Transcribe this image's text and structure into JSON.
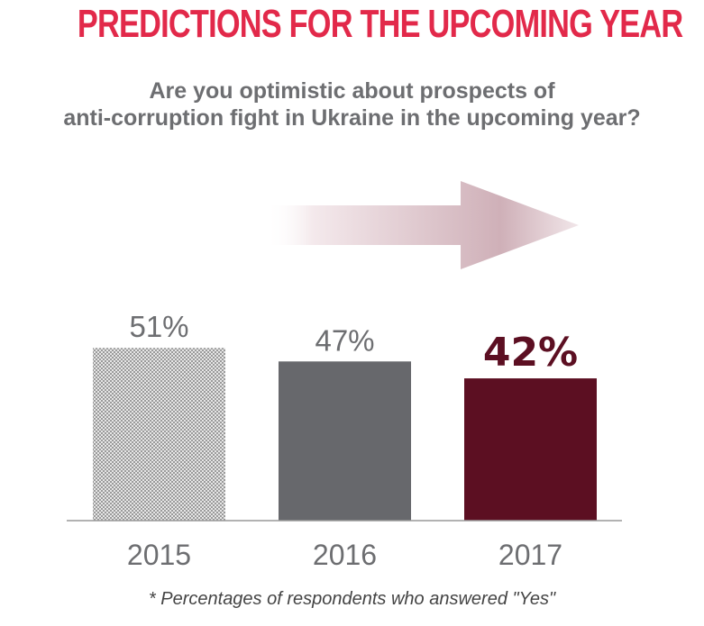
{
  "title": "PREDICTIONS FOR THE UPCOMING YEAR",
  "subtitle_lines": [
    "Are you optimistic about prospects of",
    "anti-corruption fight in Ukraine in the upcoming year?"
  ],
  "footnote": "* Percentages of respondents who answered \"Yes\"",
  "colors": {
    "title": "#e2294a",
    "subtitle": "#6d6e71",
    "bar_2015": "#b5b5b5",
    "bar_2016": "#67686c",
    "bar_2017": "#5c0f22",
    "arrow": "#c9a9b1",
    "axis": "#999999"
  },
  "chart_data": {
    "type": "bar",
    "categories": [
      "2015",
      "2016",
      "2017"
    ],
    "values": [
      51,
      47,
      42
    ],
    "data_labels": [
      "51%",
      "47%",
      "42%"
    ],
    "unit": "%",
    "highlight_index": 2,
    "bar_fills": [
      "hatched-light-gray",
      "solid-gray",
      "solid-dark-red"
    ],
    "decoration": "gradient arrow pointing right above bars",
    "title": "",
    "xlabel": "",
    "ylabel": "",
    "grid": false,
    "legend": "none"
  }
}
